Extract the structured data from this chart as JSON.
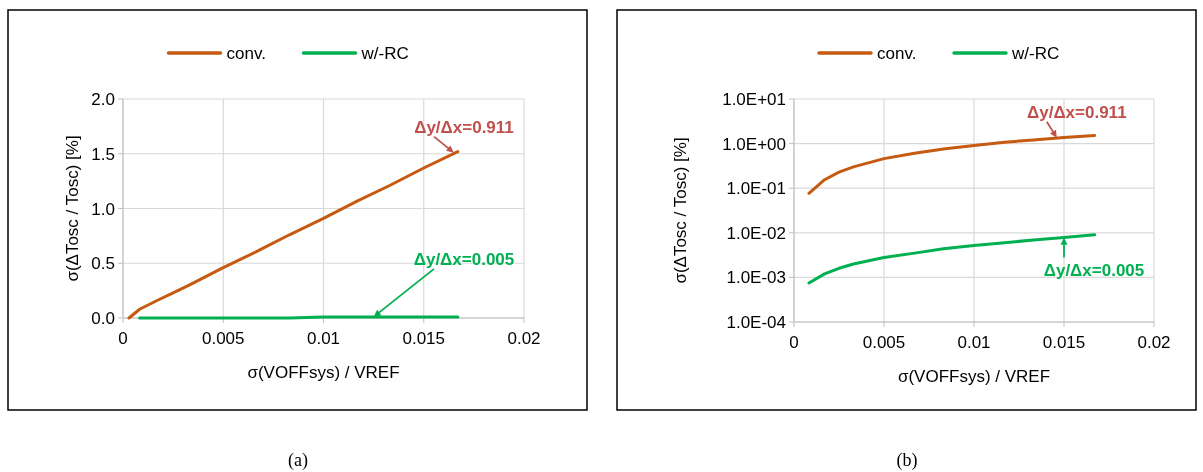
{
  "chart_data": [
    {
      "type": "line",
      "xlabel": "σ(VOFFsys) / VREF",
      "ylabel": "σ(ΔTosc / Tosc) [%]",
      "xlim": [
        0,
        0.02
      ],
      "xticks": [
        0,
        0.005,
        0.01,
        0.015,
        0.02
      ],
      "ylim": [
        0,
        2
      ],
      "yticks": [
        {
          "value": 0,
          "label": "0.0"
        },
        {
          "value": 0.5,
          "label": "0.5"
        },
        {
          "value": 1,
          "label": "1.0"
        },
        {
          "value": 1.5,
          "label": "1.5"
        },
        {
          "value": 2,
          "label": "2.0"
        }
      ],
      "grid": true,
      "legend": "top",
      "line_style": "solid",
      "series": [
        {
          "name": "conv.",
          "color": "#c55a11",
          "x": [
            0.0003,
            0.00083,
            0.0017,
            0.0025,
            0.0033,
            0.005,
            0.0067,
            0.0083,
            0.01,
            0.0117,
            0.0133,
            0.015,
            0.0167
          ],
          "values": [
            0,
            0.08,
            0.16,
            0.23,
            0.3,
            0.46,
            0.61,
            0.76,
            0.91,
            1.07,
            1.21,
            1.37,
            1.52
          ]
        },
        {
          "name": "w/-RC",
          "color": "#00b050",
          "x": [
            0.00083,
            0.0017,
            0.0025,
            0.0033,
            0.005,
            0.0067,
            0.0083,
            0.01,
            0.0117,
            0.0133,
            0.015,
            0.0167
          ],
          "values": [
            0,
            0,
            0,
            0,
            0,
            0,
            0,
            0.01,
            0.01,
            0.01,
            0.01,
            0.01
          ]
        }
      ],
      "annotations": [
        {
          "text": "Δy/Δx=0.911",
          "x": 0.0165,
          "y": 1.51
        },
        {
          "text": "Δy/Δx=0.005",
          "x": 0.0125,
          "y": 0.01
        },
        "(a)"
      ]
    },
    {
      "type": "line",
      "xlabel": "σ(VOFFsys) / VREF",
      "ylabel": "σ(ΔTosc / Tosc) [%]",
      "log": "y",
      "xlim": [
        0,
        0.02
      ],
      "xticks": [
        0,
        0.005,
        0.01,
        0.015,
        0.02
      ],
      "ylim": [
        0.0001,
        10
      ],
      "yticks": [
        {
          "value": 0.0001,
          "label": "1.0E-04"
        },
        {
          "value": 0.001,
          "label": "1.0E-03"
        },
        {
          "value": 0.01,
          "label": "1.0E-02"
        },
        {
          "value": 0.1,
          "label": "1.0E-01"
        },
        {
          "value": 1,
          "label": "1.0E+00"
        },
        {
          "value": 10,
          "label": "1.0E+01"
        }
      ],
      "grid": true,
      "legend": "top",
      "line_style": "solid",
      "series": [
        {
          "name": "conv.",
          "color": "#c55a11",
          "x": [
            0.00083,
            0.0017,
            0.0025,
            0.0033,
            0.005,
            0.0067,
            0.0083,
            0.01,
            0.0117,
            0.0133,
            0.015,
            0.0167
          ],
          "values": [
            0.077,
            0.155,
            0.23,
            0.3,
            0.46,
            0.61,
            0.76,
            0.91,
            1.07,
            1.21,
            1.37,
            1.52
          ]
        },
        {
          "name": "w/-RC",
          "color": "#00b050",
          "x": [
            0.00083,
            0.0017,
            0.0025,
            0.0033,
            0.005,
            0.0067,
            0.0083,
            0.01,
            0.0117,
            0.0133,
            0.015,
            0.0167
          ],
          "values": [
            0.00075,
            0.0012,
            0.0016,
            0.002,
            0.0028,
            0.0035,
            0.0044,
            0.0052,
            0.006,
            0.0069,
            0.0078,
            0.009
          ]
        }
      ],
      "annotations": [
        {
          "text": "Δy/Δx=0.911",
          "x": 0.0146,
          "y": 1.35
        },
        {
          "text": "Δy/Δx=0.005",
          "x": 0.015,
          "y": 0.0078
        },
        "(b)"
      ]
    }
  ]
}
